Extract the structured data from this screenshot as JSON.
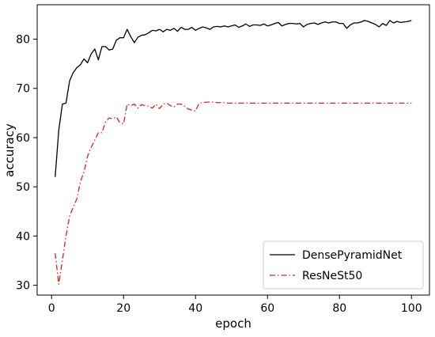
{
  "chart_data": {
    "type": "line",
    "title": "",
    "xlabel": "epoch",
    "ylabel": "accuracy",
    "xlim": [
      -4,
      105
    ],
    "ylim": [
      28,
      87
    ],
    "xticks": [
      0,
      20,
      40,
      60,
      80,
      100
    ],
    "yticks": [
      30,
      40,
      50,
      60,
      70,
      80
    ],
    "grid": false,
    "legend_position": "lower-right",
    "series": [
      {
        "name": "DensePyramidNet",
        "color": "#000000",
        "style": "solid",
        "x": [
          1,
          2,
          3,
          4,
          5,
          6,
          7,
          8,
          9,
          10,
          11,
          12,
          13,
          14,
          15,
          16,
          17,
          18,
          19,
          20,
          21,
          22,
          23,
          24,
          25,
          26,
          27,
          28,
          29,
          30,
          31,
          32,
          33,
          34,
          35,
          36,
          37,
          38,
          39,
          40,
          41,
          42,
          43,
          44,
          45,
          46,
          47,
          48,
          49,
          50,
          51,
          52,
          53,
          54,
          55,
          56,
          57,
          58,
          59,
          60,
          61,
          62,
          63,
          64,
          65,
          66,
          67,
          68,
          69,
          70,
          71,
          72,
          73,
          74,
          75,
          76,
          77,
          78,
          79,
          80,
          81,
          82,
          83,
          84,
          85,
          86,
          87,
          88,
          89,
          90,
          91,
          92,
          93,
          94,
          95,
          96,
          97,
          98,
          99,
          100
        ],
        "values": [
          52,
          61.5,
          66.8,
          67,
          71.5,
          73.2,
          74.2,
          74.8,
          76,
          75.2,
          77,
          78,
          75.8,
          78.5,
          78.5,
          77.8,
          78,
          79.8,
          80.3,
          80.3,
          82,
          80.5,
          79.3,
          80.4,
          80.8,
          80.9,
          81.3,
          81.8,
          81.7,
          82,
          81.5,
          82,
          81.8,
          82.2,
          81.6,
          82.4,
          82,
          82,
          82.4,
          81.8,
          82.2,
          82.5,
          82.3,
          82,
          82.5,
          82.6,
          82.5,
          82.7,
          82.5,
          82.7,
          82.9,
          82.4,
          82.7,
          83.1,
          82.6,
          82.9,
          82.9,
          82.8,
          83.1,
          82.7,
          82.9,
          83.2,
          83.4,
          82.7,
          83,
          83.2,
          83.2,
          83.1,
          83.2,
          82.5,
          83,
          83.2,
          83.3,
          83,
          83.3,
          83.5,
          83.3,
          83.5,
          83.5,
          83.2,
          83.2,
          82.2,
          82.9,
          83.3,
          83.3,
          83.5,
          83.8,
          83.6,
          83.3,
          83,
          82.5,
          83.2,
          82.8,
          83.8,
          83.3,
          83.6,
          83.4,
          83.5,
          83.6,
          83.8
        ]
      },
      {
        "name": "ResNeSt50",
        "color": "#e02020",
        "style": "dashdot",
        "x": [
          1,
          2,
          3,
          4,
          5,
          6,
          7,
          8,
          9,
          10,
          11,
          12,
          13,
          14,
          15,
          16,
          17,
          18,
          19,
          20,
          21,
          22,
          23,
          24,
          25,
          26,
          27,
          28,
          29,
          30,
          31,
          32,
          33,
          34,
          35,
          36,
          37,
          38,
          39,
          40,
          41,
          42,
          43,
          44,
          45,
          46,
          47,
          48,
          49,
          50,
          51,
          52,
          53,
          54,
          55,
          56,
          57,
          58,
          59,
          60,
          61,
          62,
          63,
          64,
          65,
          66,
          67,
          68,
          69,
          70,
          71,
          72,
          73,
          74,
          75,
          76,
          77,
          78,
          79,
          80,
          81,
          82,
          83,
          84,
          85,
          86,
          87,
          88,
          89,
          90,
          91,
          92,
          93,
          94,
          95,
          96,
          97,
          98,
          99,
          100
        ],
        "values": [
          36.5,
          30.2,
          35,
          40,
          44,
          45.8,
          47.5,
          51,
          53,
          56.2,
          58,
          59.5,
          61,
          61,
          63.2,
          64,
          63.8,
          64.2,
          63,
          62.8,
          66.8,
          66.5,
          66.8,
          66,
          66.7,
          66.5,
          66.4,
          66,
          66.8,
          65.9,
          66.8,
          67,
          66.5,
          66.2,
          66.8,
          66.8,
          66.4,
          65.8,
          65.6,
          65.4,
          67,
          67.1,
          67.2,
          67.2,
          67.2,
          67.1,
          67.1,
          67.1,
          67,
          67,
          67,
          67,
          67,
          67,
          67,
          67,
          67,
          67,
          67,
          67,
          67,
          67,
          67,
          67,
          67,
          67,
          67,
          67,
          67,
          67,
          67,
          67,
          67,
          67,
          67,
          67,
          67,
          67,
          67,
          67,
          67,
          67,
          67,
          67,
          67,
          67,
          67,
          67,
          67,
          67,
          67,
          67,
          67,
          67,
          67,
          67,
          67,
          67,
          67,
          67
        ]
      }
    ]
  }
}
